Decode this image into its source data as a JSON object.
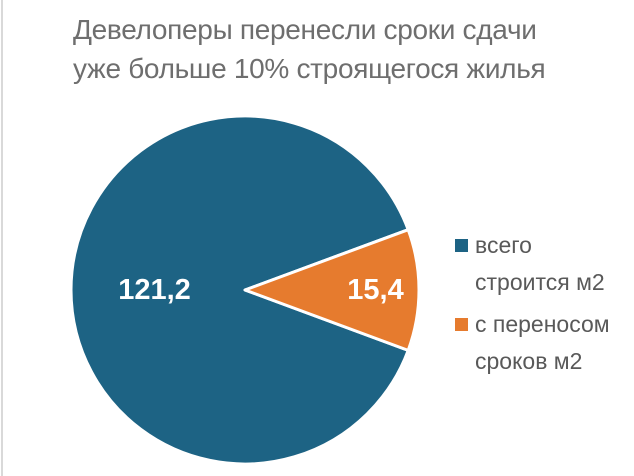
{
  "title": {
    "line1": "Девелоперы перенесли сроки сдачи",
    "line2": "уже больше 10% строящегося жилья"
  },
  "chart_data": {
    "type": "pie",
    "title": "Девелоперы перенесли сроки сдачи уже больше 10% строящегося жилья",
    "categories": [
      "всего строится м2",
      "с переносом сроков м2"
    ],
    "values": [
      121.2,
      15.4
    ],
    "slices": [
      {
        "name": "всего строится м2",
        "value": 121.2,
        "display_label": "121,2",
        "color": "#1d6384"
      },
      {
        "name": "с переносом сроков м2",
        "value": 15.4,
        "display_label": "15,4",
        "color": "#e67b2e"
      }
    ],
    "start_angle_deg": 20.3,
    "legend_position": "right",
    "data_labels": true,
    "data_label_color": "#ffffff",
    "background": "#ffffff",
    "title_color": "#6e6e6e",
    "legend_text_color": "#595959"
  },
  "legend": {
    "items": [
      {
        "label": "всего строится м2",
        "color": "#1d6384"
      },
      {
        "label": "с переносом сроков м2",
        "color": "#e67b2e"
      }
    ]
  }
}
